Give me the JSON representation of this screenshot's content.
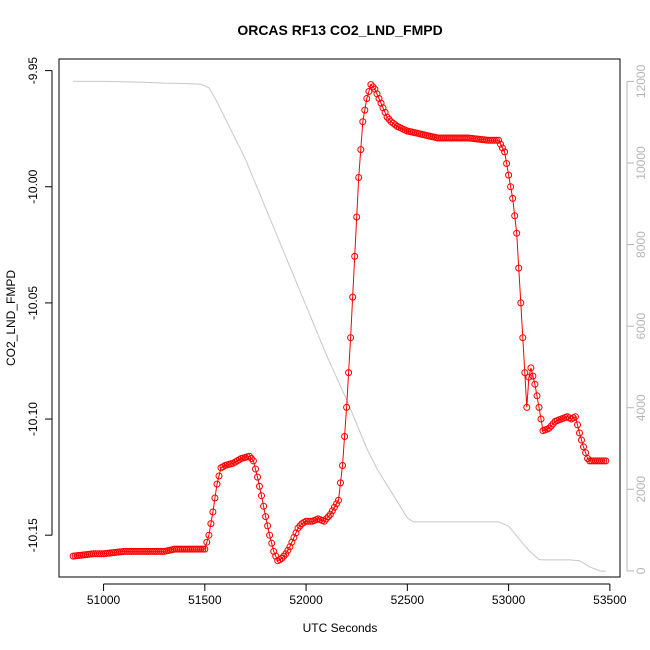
{
  "chart_data": {
    "type": "line",
    "title": "ORCAS RF13 CO2_LND_FMPD",
    "xlabel": "UTC Seconds",
    "ylabel": "CO2_LND_FMPD",
    "xlim": [
      50780,
      53550
    ],
    "ylim": [
      -10.168,
      -9.945
    ],
    "y2lim": [
      -150,
      12550
    ],
    "xticks": [
      51000,
      51500,
      52000,
      52500,
      53000,
      53500
    ],
    "yticks": [
      -10.15,
      -10.1,
      -10.05,
      -10.0,
      -9.95
    ],
    "y2ticks": [
      0,
      2000,
      4000,
      6000,
      8000,
      10000,
      12000
    ],
    "grid": false,
    "series": [
      {
        "axis": "left",
        "style": "points-and-lines",
        "color": "#ff0000",
        "x": [
          50850,
          50950,
          51000,
          51100,
          51200,
          51300,
          51350,
          51400,
          51450,
          51500,
          51520,
          51540,
          51560,
          51580,
          51600,
          51640,
          51680,
          51720,
          51740,
          51760,
          51780,
          51800,
          51820,
          51840,
          51860,
          51880,
          51900,
          51920,
          51940,
          51960,
          51980,
          52000,
          52030,
          52060,
          52090,
          52120,
          52140,
          52160,
          52180,
          52200,
          52220,
          52240,
          52260,
          52280,
          52300,
          52320,
          52340,
          52360,
          52380,
          52400,
          52420,
          52450,
          52500,
          52550,
          52600,
          52650,
          52700,
          52800,
          52900,
          52950,
          52980,
          53000,
          53020,
          53040,
          53060,
          53080,
          53090,
          53100,
          53110,
          53130,
          53150,
          53170,
          53200,
          53230,
          53260,
          53290,
          53310,
          53330,
          53350,
          53370,
          53390,
          53400,
          53450,
          53480
        ],
        "y": [
          -10.159,
          -10.158,
          -10.158,
          -10.157,
          -10.157,
          -10.157,
          -10.156,
          -10.156,
          -10.156,
          -10.156,
          -10.15,
          -10.14,
          -10.128,
          -10.121,
          -10.12,
          -10.119,
          -10.117,
          -10.116,
          -10.118,
          -10.125,
          -10.133,
          -10.142,
          -10.15,
          -10.157,
          -10.161,
          -10.16,
          -10.158,
          -10.155,
          -10.151,
          -10.147,
          -10.145,
          -10.144,
          -10.144,
          -10.143,
          -10.144,
          -10.141,
          -10.138,
          -10.135,
          -10.12,
          -10.095,
          -10.065,
          -10.03,
          -9.996,
          -9.972,
          -9.962,
          -9.956,
          -9.958,
          -9.962,
          -9.966,
          -9.97,
          -9.972,
          -9.974,
          -9.976,
          -9.977,
          -9.978,
          -9.979,
          -9.979,
          -9.979,
          -9.98,
          -9.98,
          -9.985,
          -9.995,
          -10.005,
          -10.02,
          -10.05,
          -10.08,
          -10.095,
          -10.082,
          -10.078,
          -10.085,
          -10.095,
          -10.105,
          -10.104,
          -10.101,
          -10.1,
          -10.099,
          -10.1,
          -10.099,
          -10.106,
          -10.112,
          -10.117,
          -10.118,
          -10.118,
          -10.118
        ]
      },
      {
        "axis": "right",
        "style": "line",
        "color": "#c8c8c8",
        "x": [
          50850,
          51000,
          51200,
          51300,
          51400,
          51480,
          51520,
          51560,
          51620,
          51700,
          51800,
          51900,
          52000,
          52100,
          52200,
          52300,
          52350,
          52400,
          52450,
          52500,
          52530,
          52600,
          52800,
          52950,
          53000,
          53050,
          53100,
          53150,
          53170,
          53300,
          53350,
          53400,
          53450,
          53480
        ],
        "y": [
          12000,
          12000,
          11980,
          11960,
          11950,
          11930,
          11850,
          11500,
          10900,
          10100,
          8900,
          7700,
          6500,
          5300,
          4200,
          3000,
          2500,
          2100,
          1700,
          1300,
          1200,
          1200,
          1200,
          1200,
          1100,
          800,
          500,
          280,
          270,
          270,
          250,
          100,
          0,
          -10
        ]
      }
    ]
  }
}
